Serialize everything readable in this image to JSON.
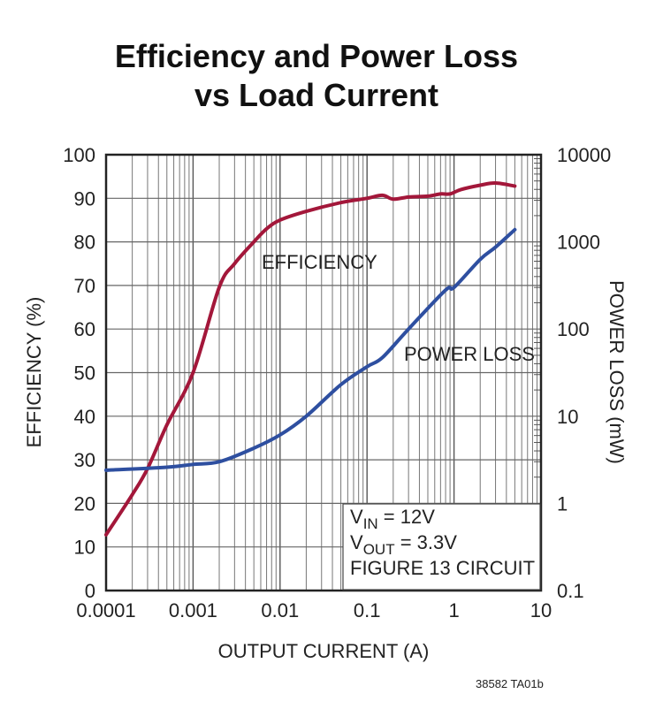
{
  "chart_data": {
    "type": "line",
    "title_lines": [
      "Efficiency and Power Loss",
      "vs Load Current"
    ],
    "xlabel": "OUTPUT CURRENT (A)",
    "ylabel": "EFFICIENCY (%)",
    "y2label": "POWER LOSS (mW)",
    "xscale": "log",
    "xlim": [
      0.0001,
      10
    ],
    "ylim": [
      0,
      100
    ],
    "y2scale": "log",
    "y2lim": [
      0.1,
      10000
    ],
    "grid": true,
    "xticks": [
      "0.0001",
      "0.001",
      "0.01",
      "0.1",
      "1",
      "10"
    ],
    "yticks": [
      "0",
      "10",
      "20",
      "30",
      "40",
      "50",
      "60",
      "70",
      "80",
      "90",
      "100"
    ],
    "y2ticks": [
      "0.1",
      "1",
      "10",
      "100",
      "1000",
      "10000"
    ],
    "series": [
      {
        "name": "EFFICIENCY",
        "axis": "left",
        "color": "#a3173a",
        "x": [
          0.0001,
          0.0002,
          0.0003,
          0.0005,
          0.001,
          0.002,
          0.003,
          0.005,
          0.007,
          0.01,
          0.02,
          0.05,
          0.1,
          0.15,
          0.2,
          0.3,
          0.5,
          0.7,
          0.9,
          1.2,
          2,
          3,
          5
        ],
        "values": [
          12.8,
          22,
          28,
          38,
          50,
          69.6,
          75,
          80,
          83,
          85,
          87,
          89,
          90,
          90.7,
          89.8,
          90.3,
          90.5,
          91,
          91,
          92,
          93,
          93.5,
          92.8
        ]
      },
      {
        "name": "POWER LOSS",
        "axis": "right",
        "color": "#2e4fa0",
        "x": [
          0.0001,
          0.0005,
          0.001,
          0.002,
          0.005,
          0.01,
          0.02,
          0.05,
          0.1,
          0.15,
          0.3,
          0.8,
          1,
          2,
          3,
          5
        ],
        "values": [
          2.4,
          2.6,
          2.8,
          3.0,
          4.3,
          6.1,
          10,
          23,
          37,
          47,
          100,
          280,
          300,
          630,
          870,
          1380
        ]
      }
    ],
    "annotation_lines": [
      {
        "main": "V",
        "sub": "IN",
        "rest": " = 12V"
      },
      {
        "main": "V",
        "sub": "OUT",
        "rest": " = 3.3V"
      },
      {
        "main": "FIGURE 13 CIRCUIT",
        "sub": "",
        "rest": ""
      }
    ],
    "footer": "38582 TA01b"
  }
}
